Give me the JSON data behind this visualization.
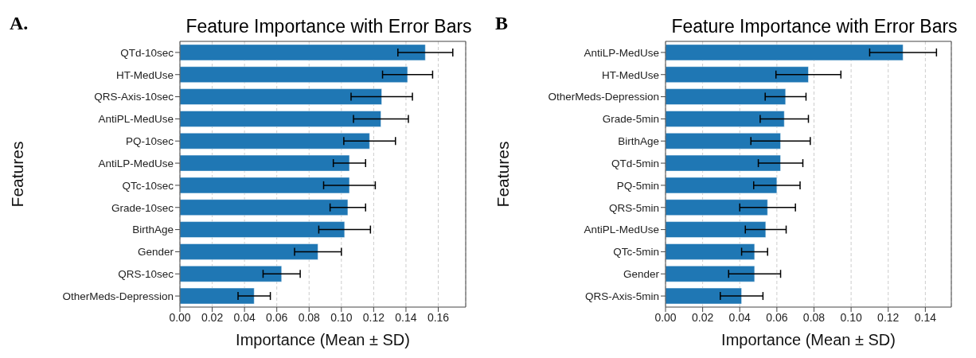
{
  "chart_data": [
    {
      "type": "bar",
      "orientation": "horizontal",
      "title": "Feature Importance with Error Bars",
      "xlabel": "Importance (Mean ± SD)",
      "ylabel": "Features",
      "annotations": [
        "A."
      ],
      "categories": [
        "QTd-10sec",
        "HT-MedUse",
        "QRS-Axis-10sec",
        "AntiPL-MedUse",
        "PQ-10sec",
        "AntiLP-MedUse",
        "QTc-10sec",
        "Grade-10sec",
        "BirthAge",
        "Gender",
        "QRS-10sec",
        "OtherMeds-Depression"
      ],
      "values": [
        0.152,
        0.141,
        0.125,
        0.1245,
        0.1175,
        0.105,
        0.105,
        0.104,
        0.102,
        0.0855,
        0.063,
        0.046
      ],
      "errors": [
        0.017,
        0.0155,
        0.019,
        0.017,
        0.016,
        0.01,
        0.016,
        0.011,
        0.016,
        0.0145,
        0.0115,
        0.01
      ],
      "color": "#1f77b4",
      "xlim": [
        0,
        0.177
      ],
      "xticks": [
        {
          "value": 0,
          "label": "0.00"
        },
        {
          "value": 0.02,
          "label": "0.02"
        },
        {
          "value": 0.04,
          "label": "0.04"
        },
        {
          "value": 0.06,
          "label": "0.06"
        },
        {
          "value": 0.08,
          "label": "0.08"
        },
        {
          "value": 0.1,
          "label": "0.10"
        },
        {
          "value": 0.12,
          "label": "0.12"
        },
        {
          "value": 0.14,
          "label": "0.14"
        },
        {
          "value": 0.16,
          "label": "0.16"
        }
      ],
      "grid": "x",
      "line_style": "dashed"
    },
    {
      "type": "bar",
      "orientation": "horizontal",
      "title": "Feature Importance with Error Bars",
      "xlabel": "Importance (Mean ± SD)",
      "ylabel": "Features",
      "annotations": [
        "B"
      ],
      "categories": [
        "AntiLP-MedUse",
        "HT-MedUse",
        "OtherMeds-Depression",
        "Grade-5min",
        "BirthAge",
        "QTd-5min",
        "PQ-5min",
        "QRS-5min",
        "AntiPL-MedUse",
        "QTc-5min",
        "Gender",
        "QRS-Axis-5min"
      ],
      "values": [
        0.128,
        0.077,
        0.0647,
        0.064,
        0.062,
        0.062,
        0.06,
        0.055,
        0.054,
        0.048,
        0.048,
        0.041
      ],
      "errors": [
        0.018,
        0.0175,
        0.011,
        0.013,
        0.016,
        0.012,
        0.0125,
        0.015,
        0.011,
        0.007,
        0.014,
        0.0115
      ],
      "color": "#1f77b4",
      "xlim": [
        0,
        0.154
      ],
      "xticks": [
        {
          "value": 0,
          "label": "0.00"
        },
        {
          "value": 0.02,
          "label": "0.02"
        },
        {
          "value": 0.04,
          "label": "0.04"
        },
        {
          "value": 0.06,
          "label": "0.06"
        },
        {
          "value": 0.08,
          "label": "0.08"
        },
        {
          "value": 0.1,
          "label": "0.10"
        },
        {
          "value": 0.12,
          "label": "0.12"
        },
        {
          "value": 0.14,
          "label": "0.14"
        }
      ],
      "grid": "x",
      "line_style": "dashed"
    }
  ]
}
